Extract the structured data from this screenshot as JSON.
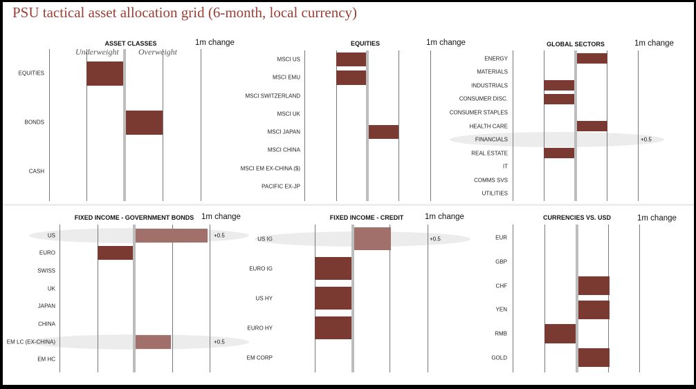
{
  "title": "PSU tactical asset allocation grid (6-month, local currency)",
  "colors": {
    "bar": "#7a3a32",
    "bar_changed": "#a1706a",
    "highlight": "#ececec",
    "title": "#9a3f36"
  },
  "chart_data": [
    {
      "type": "bar",
      "title": "ASSET CLASSES",
      "change_label": "1m change",
      "scale_labels": [
        "Underweight",
        "Overweight"
      ],
      "categories": [
        "EQUITIES",
        "BONDS",
        "CASH"
      ],
      "values": [
        -1,
        1,
        0
      ],
      "one_month_change": [
        "",
        "",
        ""
      ],
      "xlim": [
        -2,
        2
      ]
    },
    {
      "type": "bar",
      "title": "EQUITIES",
      "change_label": "1m change",
      "categories": [
        "MSCI US",
        "MSCI EMU",
        "MSCI SWITZERLAND",
        "MSCI UK",
        "MSCI JAPAN",
        "MSCI CHINA",
        "MSCI EM EX-CHINA ($)",
        "PACIFIC EX-JP"
      ],
      "values": [
        -1,
        -1,
        0,
        0,
        1,
        0,
        0,
        0
      ],
      "one_month_change": [
        "",
        "",
        "",
        "",
        "",
        "",
        "",
        ""
      ],
      "xlim": [
        -2,
        2
      ]
    },
    {
      "type": "bar",
      "title": "GLOBAL SECTORS",
      "change_label": "1m change",
      "categories": [
        "ENERGY",
        "MATERIALS",
        "INDUSTRIALS",
        "CONSUMER DISC.",
        "CONSUMER STAPLES",
        "HEALTH CARE",
        "FINANCIALS",
        "REAL ESTATE",
        "IT",
        "COMMS SVS",
        "UTILITIES"
      ],
      "values": [
        1,
        0,
        -1,
        -1,
        0,
        1,
        0,
        -1,
        0,
        0,
        0
      ],
      "one_month_change": [
        "",
        "",
        "",
        "",
        "",
        "",
        "+0.5",
        "",
        "",
        "",
        ""
      ],
      "xlim": [
        -2,
        2
      ]
    },
    {
      "type": "bar",
      "title": "FIXED INCOME - GOVERNMENT BONDS",
      "change_label": "1m change",
      "categories": [
        "US",
        "EURO",
        "SWISS",
        "UK",
        "JAPAN",
        "CHINA",
        "EM LC (EX-CHINA)",
        "EM HC"
      ],
      "values": [
        2,
        -1,
        0,
        0,
        0,
        0,
        1,
        0
      ],
      "one_month_change": [
        "+0.5",
        "",
        "",
        "",
        "",
        "",
        "+0.5",
        ""
      ],
      "xlim": [
        -2,
        2
      ]
    },
    {
      "type": "bar",
      "title": "FIXED INCOME - CREDIT",
      "change_label": "1m change",
      "categories": [
        "US IG",
        "EURO IG",
        "US HY",
        "EURO HY",
        "EM CORP"
      ],
      "values": [
        1,
        -1,
        -1,
        -1,
        0
      ],
      "one_month_change": [
        "+0.5",
        "",
        "",
        "",
        ""
      ],
      "xlim": [
        -2,
        2
      ]
    },
    {
      "type": "bar",
      "title": "CURRENCIES VS. USD",
      "change_label": "1m change",
      "categories": [
        "EUR",
        "GBP",
        "CHF",
        "YEN",
        "RMB",
        "GOLD"
      ],
      "values": [
        0,
        0,
        1,
        1,
        -1,
        1
      ],
      "one_month_change": [
        "",
        "",
        "",
        "",
        "",
        ""
      ],
      "xlim": [
        -2,
        2
      ]
    }
  ]
}
